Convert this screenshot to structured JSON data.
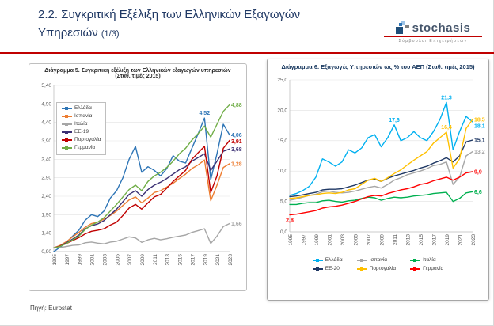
{
  "slide": {
    "title_line1": "2.2. Συγκριτική Εξέλιξη των Ελληνικών Εξαγωγών",
    "title_line2": "Υπηρεσιών",
    "title_suffix": "(1/3)",
    "source": "Πηγή: Eurostat",
    "accent_color": "#C00000"
  },
  "logo": {
    "name": "stochasis",
    "tagline": "Σύμβουλοι Επιχειρήσεων"
  },
  "chart_data": [
    {
      "type": "line",
      "title": "Διάγραμμα 5. Συγκριτική εξέλιξη των Ελληνικών εξαγωγών υπηρεσιών (Σταθ. τιμές 2015)",
      "x": [
        1995,
        1996,
        1997,
        1998,
        1999,
        2000,
        2001,
        2002,
        2003,
        2004,
        2005,
        2006,
        2007,
        2008,
        2009,
        2010,
        2011,
        2012,
        2013,
        2014,
        2015,
        2016,
        2017,
        2018,
        2019,
        2020,
        2021,
        2022,
        2023
      ],
      "x_label_step": 2,
      "ylim": [
        0.9,
        5.4
      ],
      "ytick_step": 0.5,
      "tick_decimals": 2,
      "grid": true,
      "legend_position": "inside-top-left",
      "series": [
        {
          "name": "Ελλάδα",
          "color": "#2E75B6",
          "values": [
            0.9,
            1.02,
            1.15,
            1.32,
            1.48,
            1.75,
            1.9,
            1.85,
            2.0,
            2.35,
            2.55,
            2.9,
            3.4,
            3.75,
            3.05,
            3.2,
            3.1,
            2.95,
            3.15,
            3.5,
            3.35,
            3.3,
            3.7,
            4.1,
            4.52,
            2.85,
            3.55,
            4.35,
            4.06
          ],
          "end_label": "4,06"
        },
        {
          "name": "Ισπανία",
          "color": "#ED7D31",
          "values": [
            1.0,
            1.07,
            1.17,
            1.3,
            1.42,
            1.56,
            1.66,
            1.7,
            1.78,
            1.88,
            2.0,
            2.15,
            2.3,
            2.38,
            2.22,
            2.35,
            2.5,
            2.55,
            2.65,
            2.75,
            2.88,
            3.0,
            3.15,
            3.25,
            3.38,
            2.28,
            2.7,
            3.18,
            3.28
          ],
          "end_label": "3,28"
        },
        {
          "name": "Ιταλία",
          "color": "#A6A6A6",
          "values": [
            1.0,
            1.01,
            1.04,
            1.07,
            1.08,
            1.14,
            1.16,
            1.13,
            1.11,
            1.16,
            1.18,
            1.24,
            1.3,
            1.27,
            1.15,
            1.22,
            1.26,
            1.22,
            1.25,
            1.29,
            1.32,
            1.35,
            1.42,
            1.47,
            1.52,
            1.12,
            1.32,
            1.58,
            1.66
          ],
          "end_label": "1,66"
        },
        {
          "name": "ΕΕ-19",
          "color": "#3B3074",
          "values": [
            1.0,
            1.05,
            1.14,
            1.24,
            1.35,
            1.52,
            1.6,
            1.65,
            1.74,
            1.9,
            2.05,
            2.25,
            2.45,
            2.55,
            2.4,
            2.58,
            2.7,
            2.78,
            2.88,
            3.0,
            3.12,
            3.2,
            3.35,
            3.45,
            3.55,
            3.1,
            3.35,
            3.62,
            3.68
          ],
          "end_label": "3,68"
        },
        {
          "name": "Πορτογαλία",
          "color": "#C00000",
          "values": [
            1.0,
            1.05,
            1.12,
            1.2,
            1.28,
            1.38,
            1.45,
            1.48,
            1.52,
            1.62,
            1.7,
            1.88,
            2.08,
            2.18,
            2.05,
            2.22,
            2.38,
            2.45,
            2.62,
            2.8,
            2.95,
            3.1,
            3.4,
            3.58,
            3.75,
            2.5,
            2.95,
            3.7,
            3.91
          ],
          "end_label": "3,91"
        },
        {
          "name": "Γερμανία",
          "color": "#70AD47",
          "values": [
            1.0,
            1.04,
            1.12,
            1.22,
            1.32,
            1.5,
            1.62,
            1.7,
            1.82,
            2.0,
            2.18,
            2.38,
            2.58,
            2.7,
            2.55,
            2.8,
            2.95,
            3.05,
            3.18,
            3.35,
            3.55,
            3.7,
            3.92,
            4.1,
            4.3,
            4.0,
            4.35,
            4.7,
            4.88
          ],
          "end_label": "4,88"
        }
      ],
      "annotations": [
        {
          "series": "Ελλάδα",
          "x": 2019,
          "value": 4.52,
          "text": "4,52"
        }
      ]
    },
    {
      "type": "line",
      "title": "Διάγραμμα 6. Εξαγωγές Υπηρεσιών ως % του ΑΕΠ (Σταθ. τιμές 2015)",
      "x": [
        1995,
        1996,
        1997,
        1998,
        1999,
        2000,
        2001,
        2002,
        2003,
        2004,
        2005,
        2006,
        2007,
        2008,
        2009,
        2010,
        2011,
        2012,
        2013,
        2014,
        2015,
        2016,
        2017,
        2018,
        2019,
        2020,
        2021,
        2022,
        2023
      ],
      "x_label_step": 2,
      "ylim": [
        0.0,
        25.0
      ],
      "ytick_step": 5.0,
      "tick_decimals": 1,
      "grid": true,
      "legend_position": "bottom",
      "series": [
        {
          "name": "Ελλάδα",
          "color": "#00B0F0",
          "values": [
            6.0,
            6.3,
            6.8,
            7.5,
            9.0,
            12.0,
            11.5,
            10.8,
            11.5,
            13.5,
            13.0,
            13.8,
            15.5,
            16.0,
            14.0,
            15.5,
            17.6,
            15.0,
            15.5,
            16.5,
            15.5,
            15.0,
            16.5,
            18.5,
            21.3,
            13.5,
            16.5,
            19.0,
            18.1
          ],
          "end_label": "18,1"
        },
        {
          "name": "Ισπανία",
          "color": "#A6A6A6",
          "values": [
            5.2,
            5.4,
            5.7,
            6.0,
            6.2,
            6.6,
            6.7,
            6.5,
            6.4,
            6.5,
            6.7,
            7.0,
            7.3,
            7.5,
            7.2,
            7.8,
            8.5,
            8.9,
            9.4,
            9.7,
            10.0,
            10.4,
            10.9,
            11.1,
            11.5,
            7.8,
            9.0,
            12.5,
            13.2
          ],
          "end_label": "13,2"
        },
        {
          "name": "Ιταλία",
          "color": "#00B050",
          "values": [
            4.5,
            4.5,
            4.7,
            4.8,
            4.8,
            5.1,
            5.2,
            5.0,
            4.9,
            5.1,
            5.2,
            5.5,
            5.7,
            5.6,
            5.2,
            5.5,
            5.7,
            5.6,
            5.7,
            5.9,
            6.0,
            6.1,
            6.3,
            6.4,
            6.5,
            5.0,
            5.5,
            6.4,
            6.6
          ],
          "end_label": "6,6"
        },
        {
          "name": "ΕΕ-20",
          "color": "#1F3864",
          "values": [
            5.8,
            5.9,
            6.1,
            6.3,
            6.5,
            6.9,
            7.0,
            7.0,
            7.1,
            7.4,
            7.7,
            8.1,
            8.5,
            8.7,
            8.3,
            8.8,
            9.2,
            9.5,
            9.8,
            10.1,
            10.5,
            10.8,
            11.3,
            11.7,
            12.2,
            11.5,
            12.5,
            14.8,
            15.1
          ],
          "end_label": "15,1"
        },
        {
          "name": "Πορτογαλία",
          "color": "#FFC000",
          "values": [
            5.5,
            5.6,
            5.8,
            6.0,
            6.1,
            6.3,
            6.4,
            6.3,
            6.5,
            6.9,
            7.1,
            7.8,
            8.5,
            8.8,
            8.3,
            8.9,
            9.6,
            10.2,
            11.0,
            11.8,
            12.5,
            13.2,
            14.6,
            15.5,
            16.4,
            10.5,
            12.0,
            17.0,
            18.5
          ],
          "end_label": "18,5"
        },
        {
          "name": "Γερμανία",
          "color": "#FF0000",
          "values": [
            2.8,
            2.9,
            3.1,
            3.3,
            3.5,
            3.9,
            4.1,
            4.2,
            4.4,
            4.7,
            5.0,
            5.4,
            5.8,
            6.0,
            5.9,
            6.3,
            6.6,
            6.9,
            7.1,
            7.4,
            7.8,
            8.0,
            8.4,
            8.7,
            9.0,
            8.5,
            9.0,
            9.7,
            9.9
          ],
          "end_label": "9,9"
        }
      ],
      "annotations": [
        {
          "series": "Ελλάδα",
          "x": 2011,
          "value": 17.6,
          "text": "17,6"
        },
        {
          "series": "Ελλάδα",
          "x": 2019,
          "value": 21.3,
          "text": "21,3"
        },
        {
          "series": "Πορτογαλία",
          "x": 2019,
          "value": 16.4,
          "text": "16,4"
        },
        {
          "series": "Γερμανία",
          "x": 1995,
          "value": 2.8,
          "text": "2,8",
          "placement": "below"
        }
      ]
    }
  ]
}
